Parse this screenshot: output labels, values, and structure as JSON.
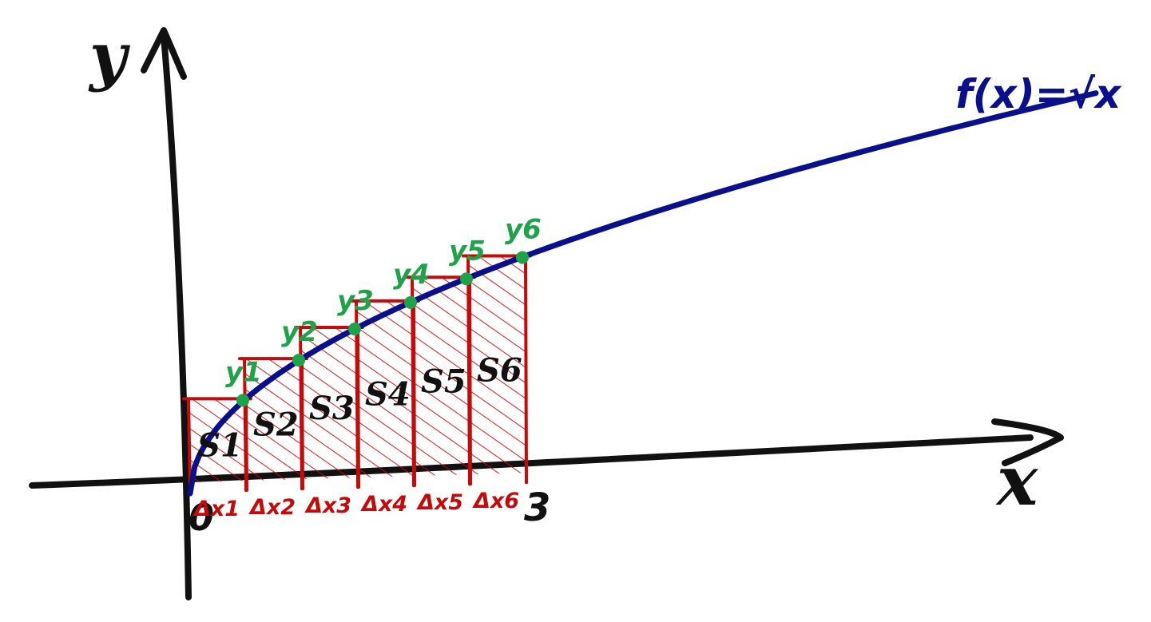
{
  "colors": {
    "axis": "#111111",
    "curve": "#0a0f8c",
    "rect": "#c40a0a",
    "point": "#1fa34a",
    "label": "#111111"
  },
  "axes": {
    "x_label": "x",
    "y_label": "y",
    "origin_label": "0",
    "end_label": "3"
  },
  "function": {
    "label": "f(x)=√x",
    "expression": "sqrt(x)"
  },
  "partition": {
    "x_start": 0,
    "x_end": 3,
    "count": 6,
    "dx_labels": [
      "Δx1",
      "Δx2",
      "Δx3",
      "Δx4",
      "Δx5",
      "Δx6"
    ],
    "area_labels": [
      "S1",
      "S2",
      "S3",
      "S4",
      "S5",
      "S6"
    ],
    "point_labels": [
      "y1",
      "y2",
      "y3",
      "y4",
      "y5",
      "y6"
    ]
  }
}
